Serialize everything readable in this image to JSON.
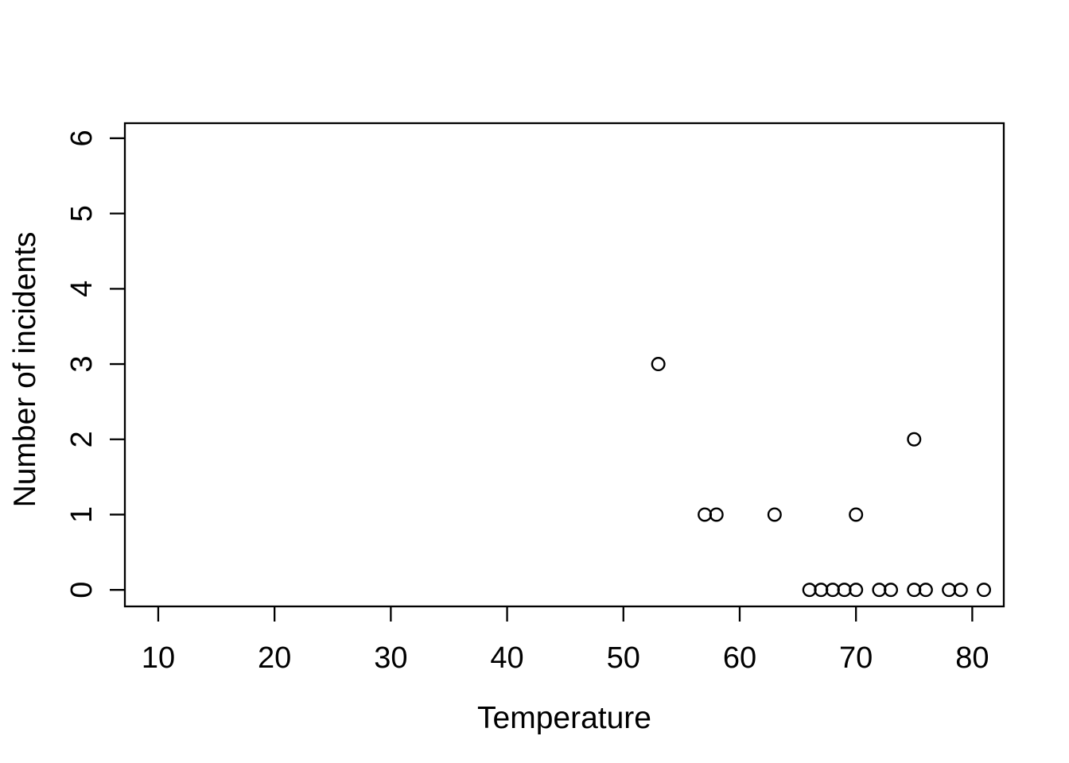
{
  "figure": {
    "background": "#ffffff",
    "stroke_color": "#000000",
    "marker_shape": "open-circle"
  },
  "chart_data": {
    "type": "scatter",
    "title": "",
    "xlabel": "Temperature",
    "ylabel": "Number of incidents",
    "x_ticks": [
      10,
      20,
      30,
      40,
      50,
      60,
      70,
      80
    ],
    "y_ticks": [
      0,
      1,
      2,
      3,
      4,
      5,
      6
    ],
    "xlim": [
      7.13,
      82.71
    ],
    "ylim": [
      -0.22,
      6.2
    ],
    "grid": false,
    "legend": null,
    "points": [
      {
        "x": 53,
        "y": 3
      },
      {
        "x": 57,
        "y": 1
      },
      {
        "x": 58,
        "y": 1
      },
      {
        "x": 63,
        "y": 1
      },
      {
        "x": 70,
        "y": 1
      },
      {
        "x": 75,
        "y": 2
      },
      {
        "x": 66,
        "y": 0
      },
      {
        "x": 67,
        "y": 0
      },
      {
        "x": 68,
        "y": 0
      },
      {
        "x": 69,
        "y": 0
      },
      {
        "x": 70,
        "y": 0
      },
      {
        "x": 72,
        "y": 0
      },
      {
        "x": 73,
        "y": 0
      },
      {
        "x": 75,
        "y": 0
      },
      {
        "x": 76,
        "y": 0
      },
      {
        "x": 78,
        "y": 0
      },
      {
        "x": 79,
        "y": 0
      },
      {
        "x": 81,
        "y": 0
      }
    ]
  }
}
